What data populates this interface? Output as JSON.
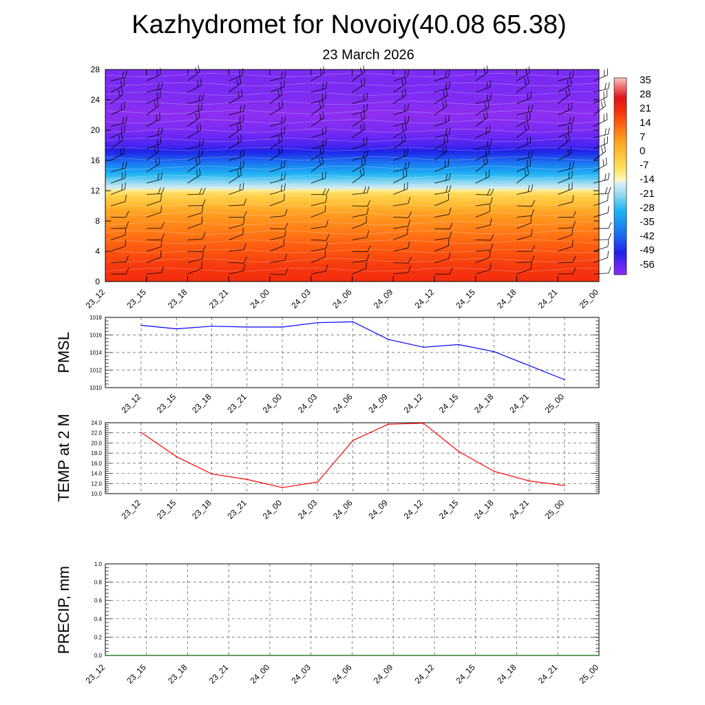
{
  "title": "Kazhydromet for Novoiy(40.08 65.38)",
  "subtitle": "23 March 2026",
  "chart_data": [
    {
      "type": "heatmap",
      "name": "vertical temperature and wind cross-section",
      "times": [
        "23_12",
        "23_15",
        "23_18",
        "23_21",
        "24_00",
        "24_03",
        "24_06",
        "24_09",
        "24_12",
        "24_15",
        "24_18",
        "24_21",
        "25_00"
      ],
      "ylim": [
        0,
        28
      ],
      "yticks": [
        0,
        4,
        8,
        12,
        16,
        20,
        24,
        28
      ],
      "colorbar": {
        "labels": [
          "35",
          "28",
          "21",
          "14",
          "7",
          "0",
          "-7",
          "-14",
          "-21",
          "-28",
          "-35",
          "-42",
          "-49",
          "-56"
        ],
        "range": [
          -60,
          38
        ],
        "stops": [
          {
            "t": -60,
            "c": "#8d2ff0"
          },
          {
            "t": -56,
            "c": "#6a28f4"
          },
          {
            "t": -49,
            "c": "#2020e8"
          },
          {
            "t": -42,
            "c": "#1e60f0"
          },
          {
            "t": -35,
            "c": "#1a8ef2"
          },
          {
            "t": -28,
            "c": "#1fb5f4"
          },
          {
            "t": -21,
            "c": "#8ad6f0"
          },
          {
            "t": -14,
            "c": "#dff0f4"
          },
          {
            "t": -13,
            "c": "#fff7c0"
          },
          {
            "t": -7,
            "c": "#ffe15e"
          },
          {
            "t": 0,
            "c": "#ffc23a"
          },
          {
            "t": 7,
            "c": "#ff9f22"
          },
          {
            "t": 14,
            "c": "#ff6a12"
          },
          {
            "t": 21,
            "c": "#f5320e"
          },
          {
            "t": 28,
            "c": "#e01418"
          },
          {
            "t": 35,
            "c": "#f28a8a"
          },
          {
            "t": 38,
            "c": "#f5c8c8"
          }
        ]
      },
      "temperature_profile": [
        {
          "level": 0,
          "value": 22
        },
        {
          "level": 2,
          "value": 20
        },
        {
          "level": 5,
          "value": 15
        },
        {
          "level": 9,
          "value": 7
        },
        {
          "level": 11.8,
          "value": -6
        },
        {
          "level": 12.2,
          "value": -14
        },
        {
          "level": 14,
          "value": -27
        },
        {
          "level": 16.5,
          "value": -45
        },
        {
          "level": 18,
          "value": -53
        },
        {
          "level": 20,
          "value": -58
        },
        {
          "level": 22,
          "value": -60
        },
        {
          "level": 25,
          "value": -58
        },
        {
          "level": 28,
          "value": -58
        }
      ]
    },
    {
      "type": "line",
      "ylabel": "PMSL",
      "categories": [
        "23_12",
        "23_15",
        "23_18",
        "23_21",
        "24_00",
        "24_03",
        "24_06",
        "24_09",
        "24_12",
        "24_15",
        "24_18",
        "24_21",
        "25_00"
      ],
      "values": [
        1017.1,
        1016.7,
        1017.0,
        1016.9,
        1016.9,
        1017.4,
        1017.5,
        1015.5,
        1014.6,
        1014.9,
        1014.1,
        1012.5,
        1010.9
      ],
      "ylim": [
        1010,
        1018
      ],
      "yticks": [
        "1010",
        "1012",
        "1014",
        "1016",
        "1018"
      ],
      "color": "#0000ff"
    },
    {
      "type": "line",
      "ylabel": "TEMP at 2 M",
      "categories": [
        "23_12",
        "23_15",
        "23_18",
        "23_21",
        "24_00",
        "24_03",
        "24_06",
        "24_09",
        "24_12",
        "24_15",
        "24_18",
        "24_21",
        "25_00"
      ],
      "values": [
        22.1,
        17.3,
        13.9,
        12.8,
        11.2,
        12.3,
        20.5,
        23.7,
        23.9,
        18.3,
        14.4,
        12.5,
        11.6
      ],
      "ylim": [
        10,
        24
      ],
      "yticks": [
        "10.0",
        "12.0",
        "14.0",
        "16.0",
        "18.0",
        "20.0",
        "22.0",
        "24.0"
      ],
      "color": "#ff0000"
    },
    {
      "type": "line",
      "ylabel": "PRECIP, mm",
      "categories": [
        "23_12",
        "23_15",
        "23_18",
        "23_21",
        "24_00",
        "24_03",
        "24_06",
        "24_09",
        "24_12",
        "24_15",
        "24_18",
        "24_21",
        "25_00"
      ],
      "values": [
        0,
        0,
        0,
        0,
        0,
        0,
        0,
        0,
        0,
        0,
        0,
        0,
        0
      ],
      "ylim": [
        0,
        1
      ],
      "yticks": [
        "0.0",
        "0.2",
        "0.4",
        "0.6",
        "0.8",
        "1.0"
      ],
      "color": "#006400"
    }
  ]
}
